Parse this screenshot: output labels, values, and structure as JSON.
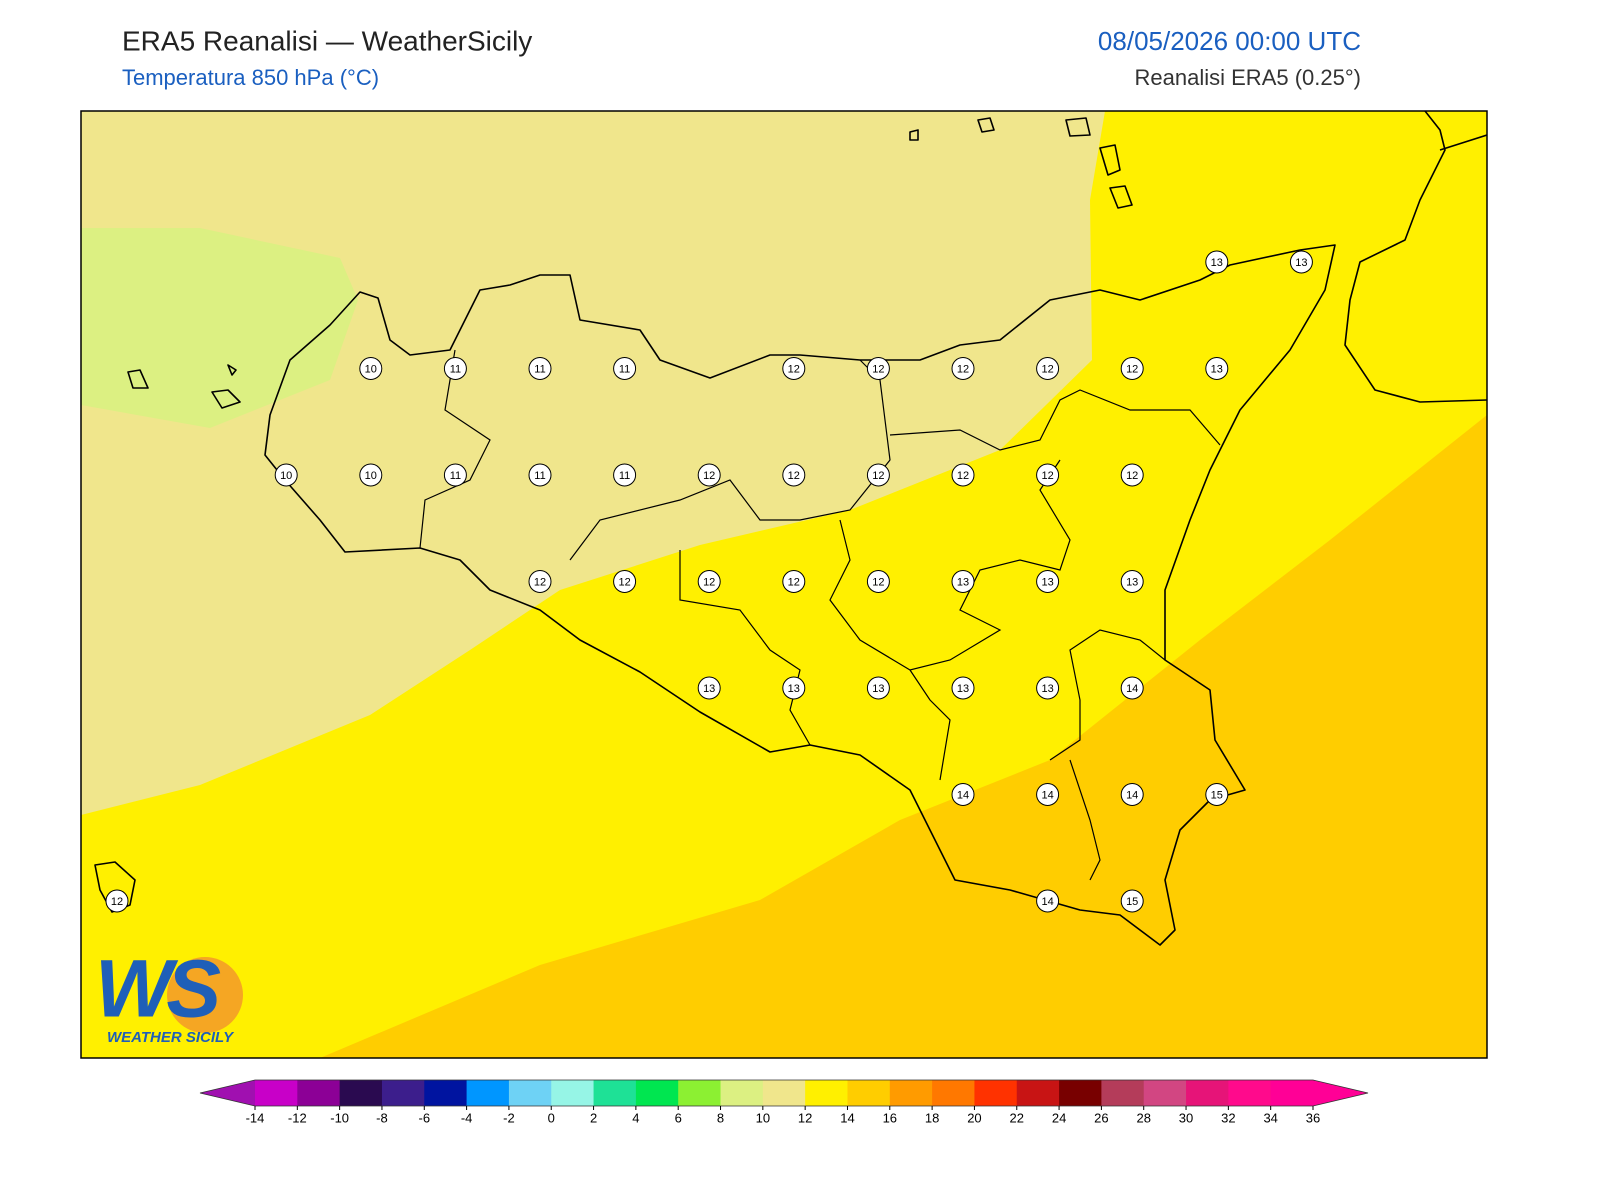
{
  "header": {
    "title": "ERA5 Reanalisi — WeatherSicily",
    "subtitle": "Temperatura 850 hPa (°C)",
    "datetime": "08/05/2026 00:00 UTC",
    "source": "Reanalisi ERA5 (0.25°)"
  },
  "map": {
    "values": [
      13,
      13,
      10,
      11,
      11,
      11,
      12,
      12,
      12,
      12,
      12,
      13,
      10,
      10,
      11,
      11,
      11,
      12,
      12,
      12,
      12,
      12,
      12,
      12,
      12,
      12,
      12,
      12,
      13,
      13,
      13,
      13,
      13,
      13,
      13,
      13,
      14,
      14,
      14,
      14,
      15,
      12,
      14,
      15
    ]
  },
  "logo": {
    "mark": "WS",
    "name": "WEATHER SICILY"
  },
  "colorbar": {
    "ticks": [
      -14,
      -12,
      -10,
      -8,
      -6,
      -4,
      -2,
      0,
      2,
      4,
      6,
      8,
      10,
      12,
      14,
      16,
      18,
      20,
      22,
      24,
      26,
      28,
      30,
      32,
      34,
      36
    ],
    "under_color": "#a010b0",
    "over_color": "#ff0096",
    "colors": [
      "#c800c8",
      "#8c0096",
      "#2a0a50",
      "#3c1e8c",
      "#0014a0",
      "#0096ff",
      "#6ed2f5",
      "#96f5e6",
      "#1ee196",
      "#00e650",
      "#8cf032",
      "#dcf082",
      "#f0e68c",
      "#fff000",
      "#ffcd00",
      "#ff9b00",
      "#ff7800",
      "#ff3200",
      "#c81414",
      "#780000",
      "#b43c5a",
      "#d24682",
      "#e61478",
      "#ff0a8c",
      "#ff0096"
    ]
  }
}
